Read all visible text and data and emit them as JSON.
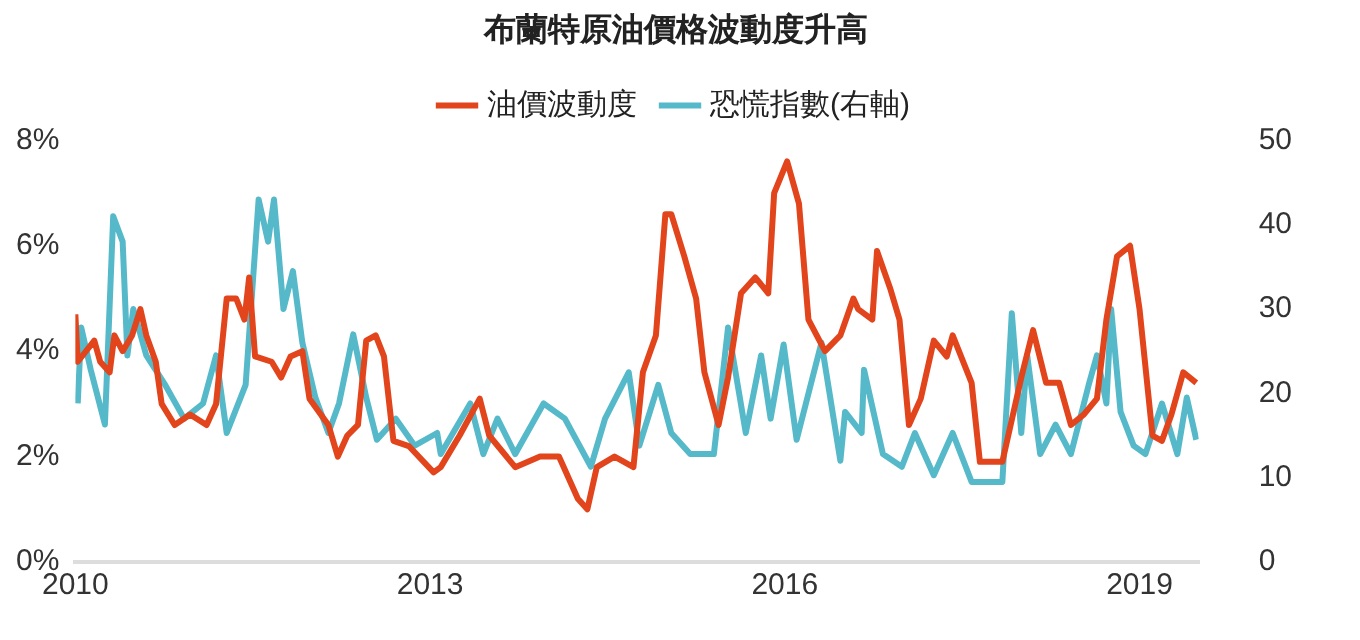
{
  "chart_data": {
    "type": "line",
    "title": "布蘭特原油價格波動度升高",
    "legend": "top",
    "grid": false,
    "marker": "none",
    "line_style": "solid",
    "xlim": [
      2010,
      2019.5
    ],
    "xticks": [
      2010,
      2013,
      2016,
      2019
    ],
    "ylim": [
      0,
      8
    ],
    "yticks": [
      {
        "value": 0,
        "label": "0%"
      },
      {
        "value": 2,
        "label": "2%"
      },
      {
        "value": 4,
        "label": "4%"
      },
      {
        "value": 6,
        "label": "6%"
      },
      {
        "value": 8,
        "label": "8%"
      }
    ],
    "y2lim": [
      0,
      50
    ],
    "y2ticks": [
      0,
      10,
      20,
      30,
      40,
      50
    ],
    "series": [
      {
        "name": "油價波動度",
        "color": "#e2441c",
        "x": [
          2010.0,
          2010.02,
          2010.16,
          2010.21,
          2010.29,
          2010.33,
          2010.4,
          2010.48,
          2010.55,
          2010.6,
          2010.68,
          2010.73,
          2010.84,
          2010.97,
          2011.11,
          2011.19,
          2011.28,
          2011.36,
          2011.43,
          2011.47,
          2011.52,
          2011.66,
          2011.74,
          2011.82,
          2011.92,
          2011.98,
          2012.14,
          2012.22,
          2012.3,
          2012.39,
          2012.46,
          2012.54,
          2012.61,
          2012.69,
          2012.82,
          2013.03,
          2013.09,
          2013.25,
          2013.42,
          2013.5,
          2013.72,
          2013.93,
          2014.09,
          2014.25,
          2014.33,
          2014.41,
          2014.56,
          2014.72,
          2014.8,
          2014.91,
          2014.99,
          2015.04,
          2015.15,
          2015.25,
          2015.32,
          2015.44,
          2015.52,
          2015.63,
          2015.75,
          2015.86,
          2015.91,
          2016.02,
          2016.12,
          2016.2,
          2016.34,
          2016.47,
          2016.58,
          2016.62,
          2016.74,
          2016.78,
          2016.89,
          2016.97,
          2017.05,
          2017.15,
          2017.26,
          2017.37,
          2017.42,
          2017.58,
          2017.65,
          2017.84,
          2018.0,
          2018.1,
          2018.21,
          2018.32,
          2018.42,
          2018.53,
          2018.64,
          2018.72,
          2018.81,
          2018.92,
          2019.0,
          2019.11,
          2019.19,
          2019.27,
          2019.37,
          2019.48
        ],
        "values": [
          4.7,
          3.8,
          4.2,
          3.8,
          3.6,
          4.3,
          4.0,
          4.3,
          4.8,
          4.3,
          3.8,
          3.0,
          2.6,
          2.8,
          2.6,
          3.0,
          5.0,
          5.0,
          4.6,
          5.4,
          3.9,
          3.8,
          3.5,
          3.9,
          4.0,
          3.1,
          2.6,
          2.0,
          2.4,
          2.6,
          4.2,
          4.3,
          3.9,
          2.3,
          2.2,
          1.7,
          1.8,
          2.4,
          3.1,
          2.4,
          1.8,
          2.0,
          2.0,
          1.2,
          1.0,
          1.8,
          2.0,
          1.8,
          3.6,
          4.3,
          6.6,
          6.6,
          5.8,
          5.0,
          3.6,
          2.6,
          3.5,
          5.1,
          5.4,
          5.1,
          7.0,
          7.6,
          6.8,
          4.6,
          4.0,
          4.3,
          5.0,
          4.8,
          4.6,
          5.9,
          5.2,
          4.6,
          2.6,
          3.1,
          4.2,
          3.9,
          4.3,
          3.4,
          1.9,
          1.9,
          3.5,
          4.4,
          3.4,
          3.4,
          2.6,
          2.8,
          3.1,
          4.6,
          5.8,
          6.0,
          4.8,
          2.4,
          2.3,
          2.8,
          3.6,
          3.4
        ]
      },
      {
        "name": "恐慌指數(右軸)",
        "color": "#55b9c9",
        "axis": "y2",
        "x": [
          2010.02,
          2010.05,
          2010.13,
          2010.25,
          2010.32,
          2010.4,
          2010.44,
          2010.49,
          2010.6,
          2010.76,
          2010.92,
          2011.08,
          2011.19,
          2011.28,
          2011.44,
          2011.55,
          2011.63,
          2011.68,
          2011.76,
          2011.84,
          2011.92,
          2012.03,
          2012.14,
          2012.23,
          2012.35,
          2012.46,
          2012.55,
          2012.71,
          2012.87,
          2013.06,
          2013.09,
          2013.34,
          2013.45,
          2013.57,
          2013.72,
          2013.96,
          2014.14,
          2014.36,
          2014.48,
          2014.68,
          2014.77,
          2014.93,
          2015.04,
          2015.2,
          2015.4,
          2015.52,
          2015.67,
          2015.8,
          2015.88,
          2015.99,
          2016.1,
          2016.31,
          2016.47,
          2016.51,
          2016.65,
          2016.67,
          2016.83,
          2016.99,
          2017.1,
          2017.26,
          2017.42,
          2017.58,
          2017.84,
          2017.92,
          2018.0,
          2018.05,
          2018.16,
          2018.29,
          2018.42,
          2018.57,
          2018.64,
          2018.72,
          2018.76,
          2018.84,
          2018.95,
          2019.05,
          2019.19,
          2019.32,
          2019.4,
          2019.48
        ],
        "values": [
          18.8,
          27.8,
          22.8,
          16.3,
          41,
          38,
          24.5,
          30,
          24.5,
          21,
          17,
          18.8,
          24.5,
          15.3,
          21,
          43,
          38,
          43,
          30,
          34.5,
          26,
          19.5,
          15.3,
          18.8,
          27,
          19.5,
          14.5,
          17,
          13.8,
          15.3,
          12.8,
          18.8,
          12.8,
          17,
          12.8,
          18.8,
          17,
          11.3,
          17,
          22.5,
          13.8,
          21,
          15.3,
          12.8,
          12.8,
          27.8,
          15.3,
          24.5,
          17,
          25.8,
          14.5,
          26,
          12,
          17.8,
          15.3,
          22.8,
          12.8,
          11.3,
          15.3,
          10.3,
          15.3,
          9.5,
          9.5,
          29.5,
          15.3,
          24.5,
          12.8,
          16.3,
          12.8,
          21,
          24.5,
          18.8,
          30,
          17.8,
          13.8,
          12.8,
          18.8,
          12.8,
          19.5,
          14.5
        ]
      }
    ]
  }
}
